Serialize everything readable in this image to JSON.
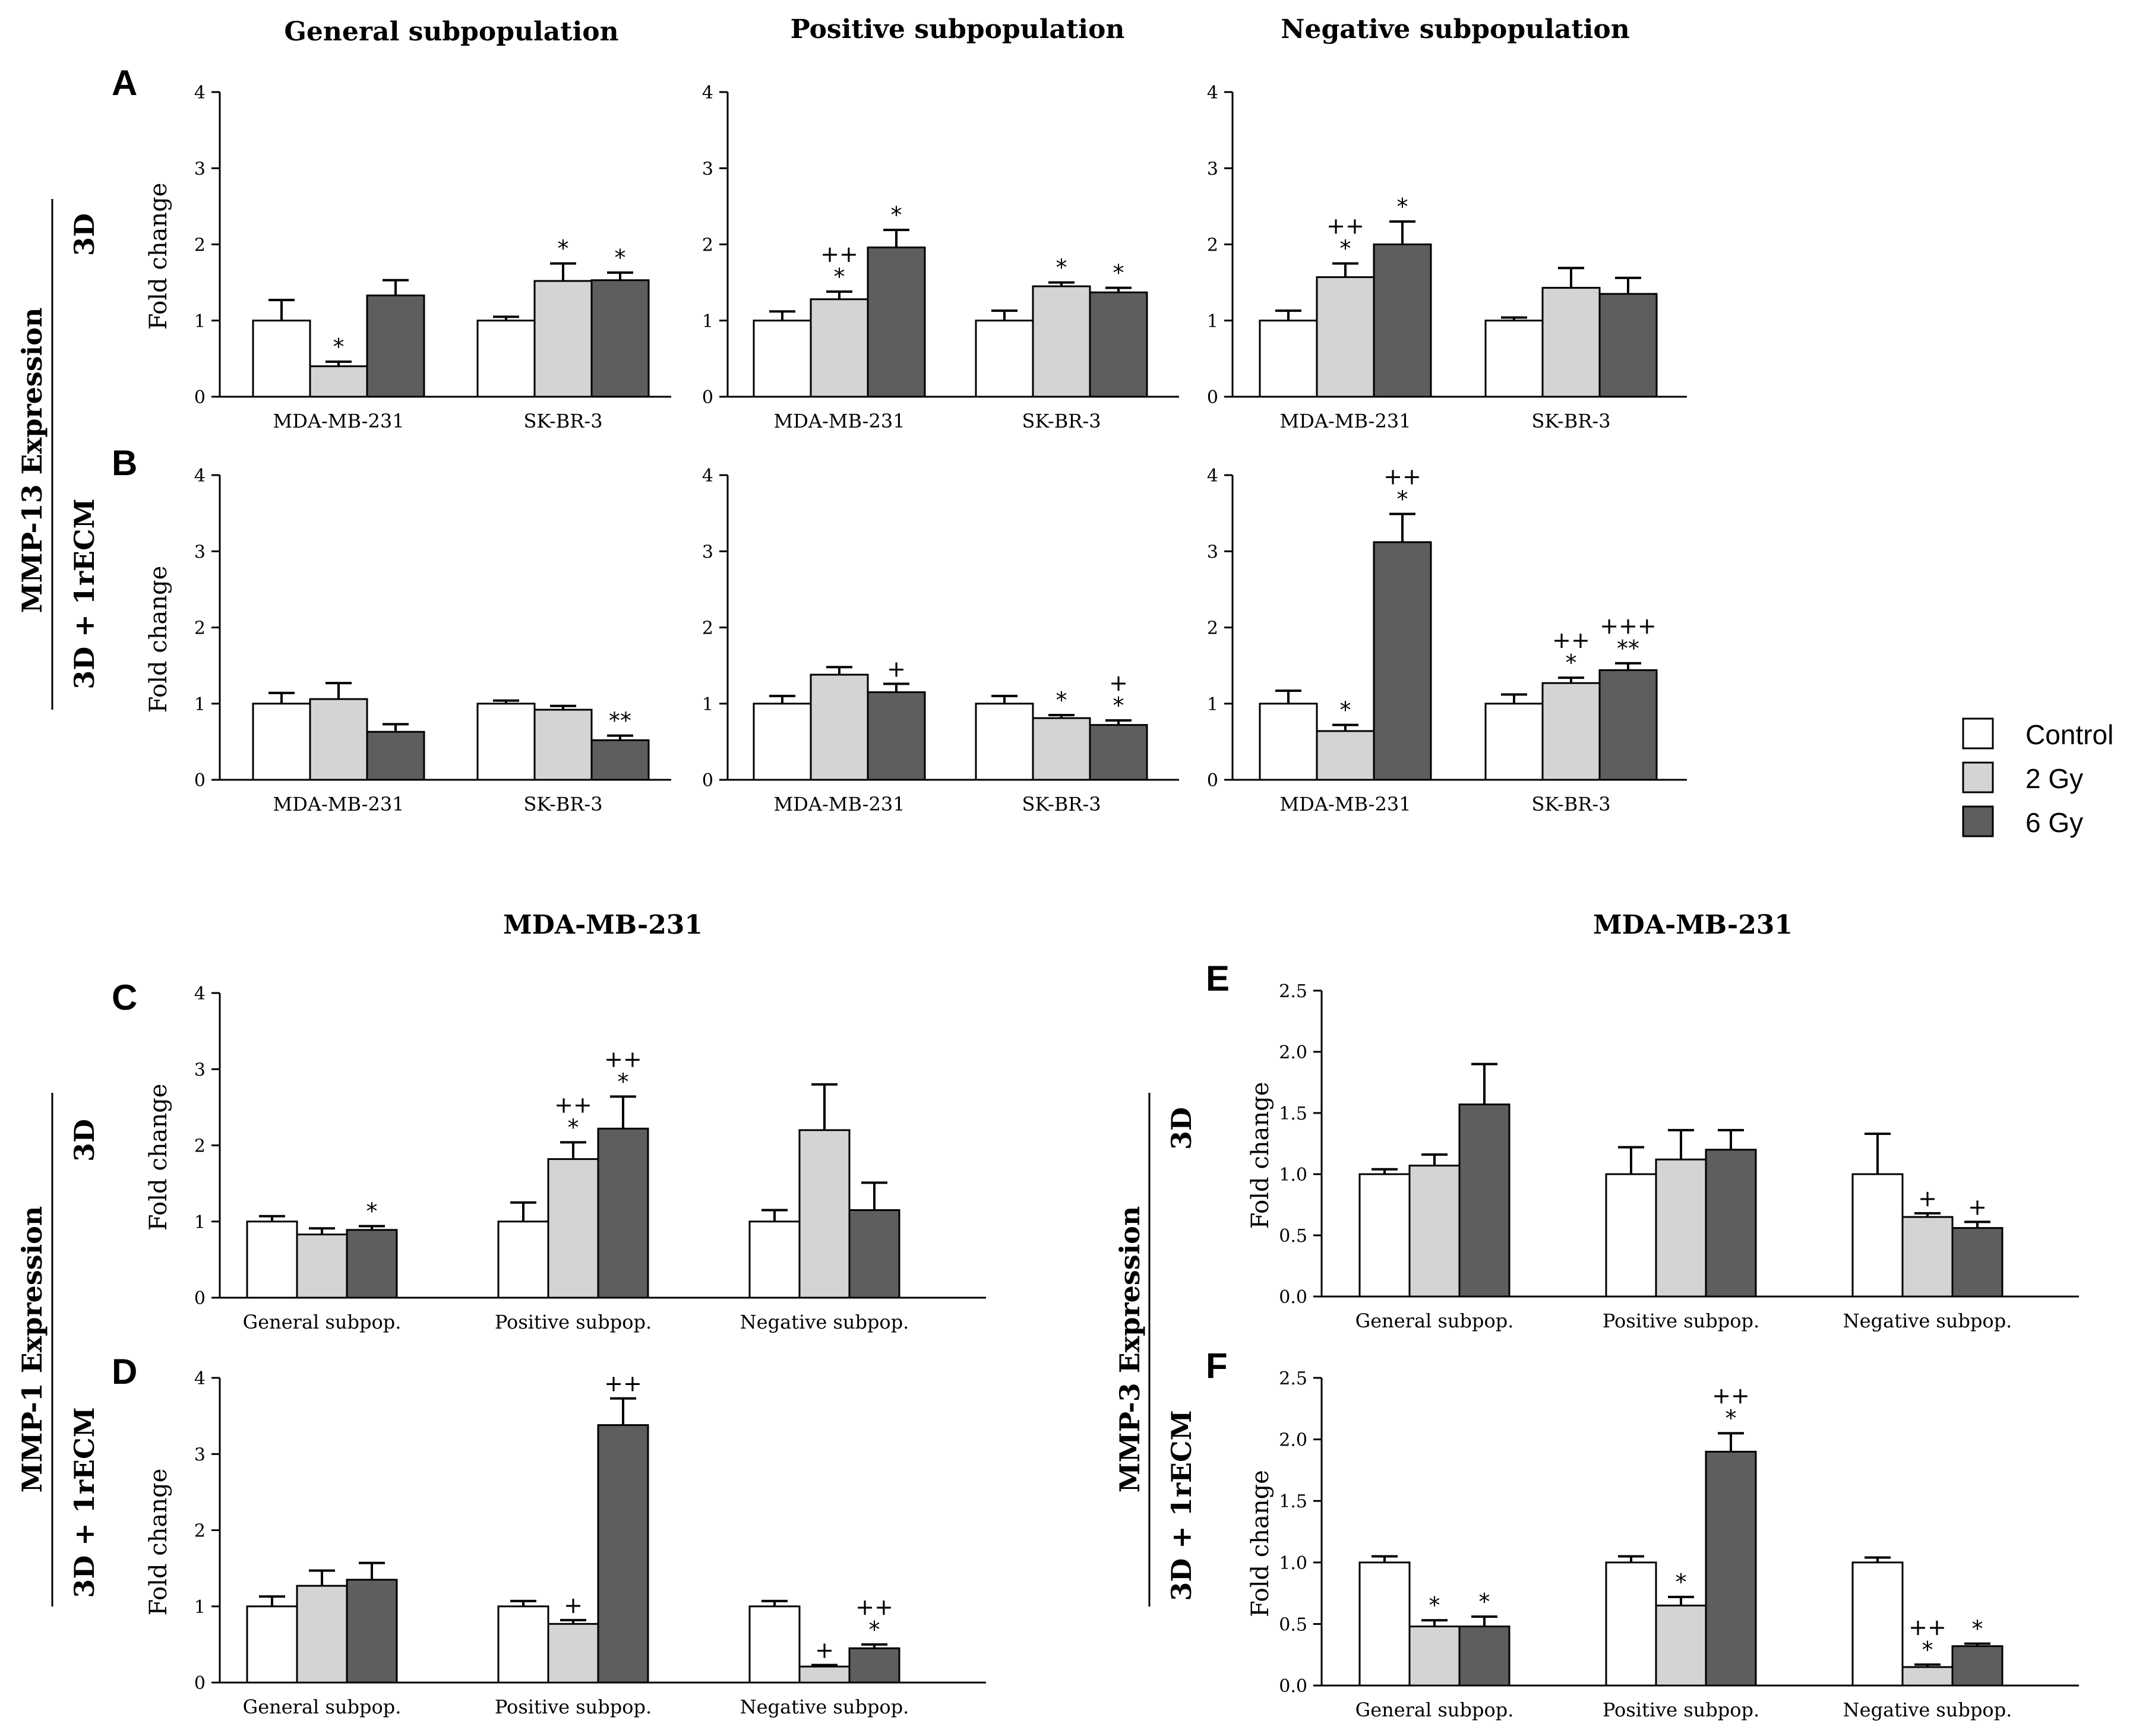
{
  "colors": {
    "control": "#ffffff",
    "gy2": "#d4d4d4",
    "gy6": "#5e5e5e",
    "stroke": "#000000"
  },
  "legend": {
    "entries": [
      "Control",
      "2 Gy",
      "6 Gy"
    ]
  },
  "headers": {
    "general": "General  subpopulation",
    "positive": "Positive subpopulation",
    "negative": "Negative subpopulation",
    "mda_left": "MDA-MB-231",
    "mda_right": "MDA-MB-231"
  },
  "side_labels": {
    "mmp13": "MMP-13 Expression",
    "mmp1": "MMP-1 Expression",
    "mmp3": "MMP-3 Expression",
    "threeD": "3D",
    "threeD_ecm": "3D + 1rECM"
  },
  "chart_data": [
    {
      "id": "A-general",
      "panel": "A",
      "type": "bar",
      "ylabel": "Fold change",
      "ylim": [
        0,
        4
      ],
      "yticks": [
        "0",
        "1",
        "2",
        "3",
        "4"
      ],
      "categories": [
        "MDA-MB-231",
        "SK-BR-3"
      ],
      "series": [
        {
          "name": "Control",
          "values": [
            1.0,
            1.0
          ],
          "errors": [
            0.27,
            0.05
          ],
          "sig": [
            "",
            ""
          ]
        },
        {
          "name": "2 Gy",
          "values": [
            0.4,
            1.52
          ],
          "errors": [
            0.06,
            0.23
          ],
          "sig": [
            "*",
            "*"
          ]
        },
        {
          "name": "6 Gy",
          "values": [
            1.33,
            1.53
          ],
          "errors": [
            0.2,
            0.1
          ],
          "sig": [
            "",
            "*"
          ]
        }
      ]
    },
    {
      "id": "A-positive",
      "type": "bar",
      "ylim": [
        0,
        4
      ],
      "categories": [
        "MDA-MB-231",
        "SK-BR-3"
      ],
      "series": [
        {
          "name": "Control",
          "values": [
            1.0,
            1.0
          ],
          "errors": [
            0.12,
            0.13
          ],
          "sig": [
            "",
            ""
          ]
        },
        {
          "name": "2 Gy",
          "values": [
            1.28,
            1.45
          ],
          "errors": [
            0.1,
            0.05
          ],
          "sig": [
            "++\n*",
            "*"
          ]
        },
        {
          "name": "6 Gy",
          "values": [
            1.96,
            1.37
          ],
          "errors": [
            0.23,
            0.06
          ],
          "sig": [
            "*",
            "*"
          ]
        }
      ]
    },
    {
      "id": "A-negative",
      "type": "bar",
      "ylim": [
        0,
        4
      ],
      "categories": [
        "MDA-MB-231",
        "SK-BR-3"
      ],
      "series": [
        {
          "name": "Control",
          "values": [
            1.0,
            1.0
          ],
          "errors": [
            0.13,
            0.04
          ],
          "sig": [
            "",
            ""
          ]
        },
        {
          "name": "2 Gy",
          "values": [
            1.57,
            1.43
          ],
          "errors": [
            0.18,
            0.26
          ],
          "sig": [
            "++\n*",
            ""
          ]
        },
        {
          "name": "6 Gy",
          "values": [
            2.0,
            1.35
          ],
          "errors": [
            0.3,
            0.21
          ],
          "sig": [
            "*",
            ""
          ]
        }
      ]
    },
    {
      "id": "B-general",
      "panel": "B",
      "type": "bar",
      "ylabel": "Fold change",
      "ylim": [
        0,
        4
      ],
      "yticks": [
        "0",
        "1",
        "2",
        "3",
        "4"
      ],
      "categories": [
        "MDA-MB-231",
        "SK-BR-3"
      ],
      "series": [
        {
          "name": "Control",
          "values": [
            1.0,
            1.0
          ],
          "errors": [
            0.14,
            0.04
          ],
          "sig": [
            "",
            ""
          ]
        },
        {
          "name": "2 Gy",
          "values": [
            1.06,
            0.92
          ],
          "errors": [
            0.21,
            0.05
          ],
          "sig": [
            "",
            ""
          ]
        },
        {
          "name": "6 Gy",
          "values": [
            0.63,
            0.52
          ],
          "errors": [
            0.1,
            0.06
          ],
          "sig": [
            "",
            "**"
          ]
        }
      ]
    },
    {
      "id": "B-positive",
      "type": "bar",
      "ylim": [
        0,
        4
      ],
      "categories": [
        "MDA-MB-231",
        "SK-BR-3"
      ],
      "series": [
        {
          "name": "Control",
          "values": [
            1.0,
            1.0
          ],
          "errors": [
            0.1,
            0.1
          ],
          "sig": [
            "",
            ""
          ]
        },
        {
          "name": "2 Gy",
          "values": [
            1.38,
            0.81
          ],
          "errors": [
            0.1,
            0.04
          ],
          "sig": [
            "",
            "*"
          ]
        },
        {
          "name": "6 Gy",
          "values": [
            1.15,
            0.72
          ],
          "errors": [
            0.11,
            0.06
          ],
          "sig": [
            "+",
            "+\n*"
          ]
        }
      ]
    },
    {
      "id": "B-negative",
      "type": "bar",
      "ylim": [
        0,
        4
      ],
      "categories": [
        "MDA-MB-231",
        "SK-BR-3"
      ],
      "series": [
        {
          "name": "Control",
          "values": [
            1.0,
            1.0
          ],
          "errors": [
            0.17,
            0.12
          ],
          "sig": [
            "",
            ""
          ]
        },
        {
          "name": "2 Gy",
          "values": [
            0.64,
            1.27
          ],
          "errors": [
            0.08,
            0.07
          ],
          "sig": [
            "*",
            "++\n*"
          ]
        },
        {
          "name": "6 Gy",
          "values": [
            3.12,
            1.44
          ],
          "errors": [
            0.37,
            0.09
          ],
          "sig": [
            "++\n*",
            "+++\n**"
          ]
        }
      ]
    },
    {
      "id": "C",
      "panel": "C",
      "type": "bar",
      "ylabel": "Fold change",
      "ylim": [
        0,
        4
      ],
      "yticks": [
        "0",
        "1",
        "2",
        "3",
        "4"
      ],
      "categories": [
        "General subpop.",
        "Positive subpop.",
        "Negative subpop."
      ],
      "series": [
        {
          "name": "Control",
          "values": [
            1.0,
            1.0,
            1.0
          ],
          "errors": [
            0.07,
            0.25,
            0.15
          ],
          "sig": [
            "",
            "",
            ""
          ]
        },
        {
          "name": "2 Gy",
          "values": [
            0.83,
            1.82,
            2.2
          ],
          "errors": [
            0.08,
            0.22,
            0.6
          ],
          "sig": [
            "",
            "++\n*",
            ""
          ]
        },
        {
          "name": "6 Gy",
          "values": [
            0.89,
            2.22,
            1.15
          ],
          "errors": [
            0.05,
            0.42,
            0.36
          ],
          "sig": [
            "*",
            "++\n*",
            ""
          ]
        }
      ]
    },
    {
      "id": "D",
      "panel": "D",
      "type": "bar",
      "ylabel": "Fold change",
      "ylim": [
        0,
        4
      ],
      "yticks": [
        "0",
        "1",
        "2",
        "3",
        "4"
      ],
      "categories": [
        "General subpop.",
        "Positive subpop.",
        "Negative subpop."
      ],
      "series": [
        {
          "name": "Control",
          "values": [
            1.0,
            1.0,
            1.0
          ],
          "errors": [
            0.13,
            0.07,
            0.07
          ],
          "sig": [
            "",
            "",
            ""
          ]
        },
        {
          "name": "2 Gy",
          "values": [
            1.27,
            0.77,
            0.21
          ],
          "errors": [
            0.2,
            0.05,
            0.02
          ],
          "sig": [
            "",
            "+",
            "+"
          ]
        },
        {
          "name": "6 Gy",
          "values": [
            1.35,
            3.38,
            0.45
          ],
          "errors": [
            0.22,
            0.35,
            0.05
          ],
          "sig": [
            "",
            "++",
            "++\n*"
          ]
        }
      ]
    },
    {
      "id": "E",
      "panel": "E",
      "type": "bar",
      "ylabel": "Fold change",
      "ylim": [
        0,
        2.5
      ],
      "yticks": [
        "0.0",
        "0.5",
        "1.0",
        "1.5",
        "2.0",
        "2.5"
      ],
      "categories": [
        "General subpop.",
        "Positive subpop.",
        "Negative subpop."
      ],
      "series": [
        {
          "name": "Control",
          "values": [
            1.0,
            1.0,
            1.0
          ],
          "errors": [
            0.04,
            0.22,
            0.33
          ],
          "sig": [
            "",
            "",
            ""
          ]
        },
        {
          "name": "2 Gy",
          "values": [
            1.07,
            1.12,
            0.65
          ],
          "errors": [
            0.09,
            0.24,
            0.03
          ],
          "sig": [
            "",
            "",
            "+"
          ]
        },
        {
          "name": "6 Gy",
          "values": [
            1.57,
            1.2,
            0.56
          ],
          "errors": [
            0.33,
            0.16,
            0.05
          ],
          "sig": [
            "",
            "",
            "+"
          ]
        }
      ]
    },
    {
      "id": "F",
      "panel": "F",
      "type": "bar",
      "ylabel": "Fold change",
      "ylim": [
        0,
        2.5
      ],
      "yticks": [
        "0.0",
        "0.5",
        "1.0",
        "1.5",
        "2.0",
        "2.5"
      ],
      "categories": [
        "General subpop.",
        "Positive subpop.",
        "Negative subpop."
      ],
      "series": [
        {
          "name": "Control",
          "values": [
            1.0,
            1.0,
            1.0
          ],
          "errors": [
            0.05,
            0.05,
            0.04
          ],
          "sig": [
            "",
            "",
            ""
          ]
        },
        {
          "name": "2 Gy",
          "values": [
            0.48,
            0.65,
            0.15
          ],
          "errors": [
            0.05,
            0.07,
            0.02
          ],
          "sig": [
            "*",
            "*",
            "++\n*"
          ]
        },
        {
          "name": "6 Gy",
          "values": [
            0.48,
            1.9,
            0.32
          ],
          "errors": [
            0.08,
            0.15,
            0.02
          ],
          "sig": [
            "*",
            "++\n*",
            "*"
          ]
        }
      ]
    }
  ]
}
